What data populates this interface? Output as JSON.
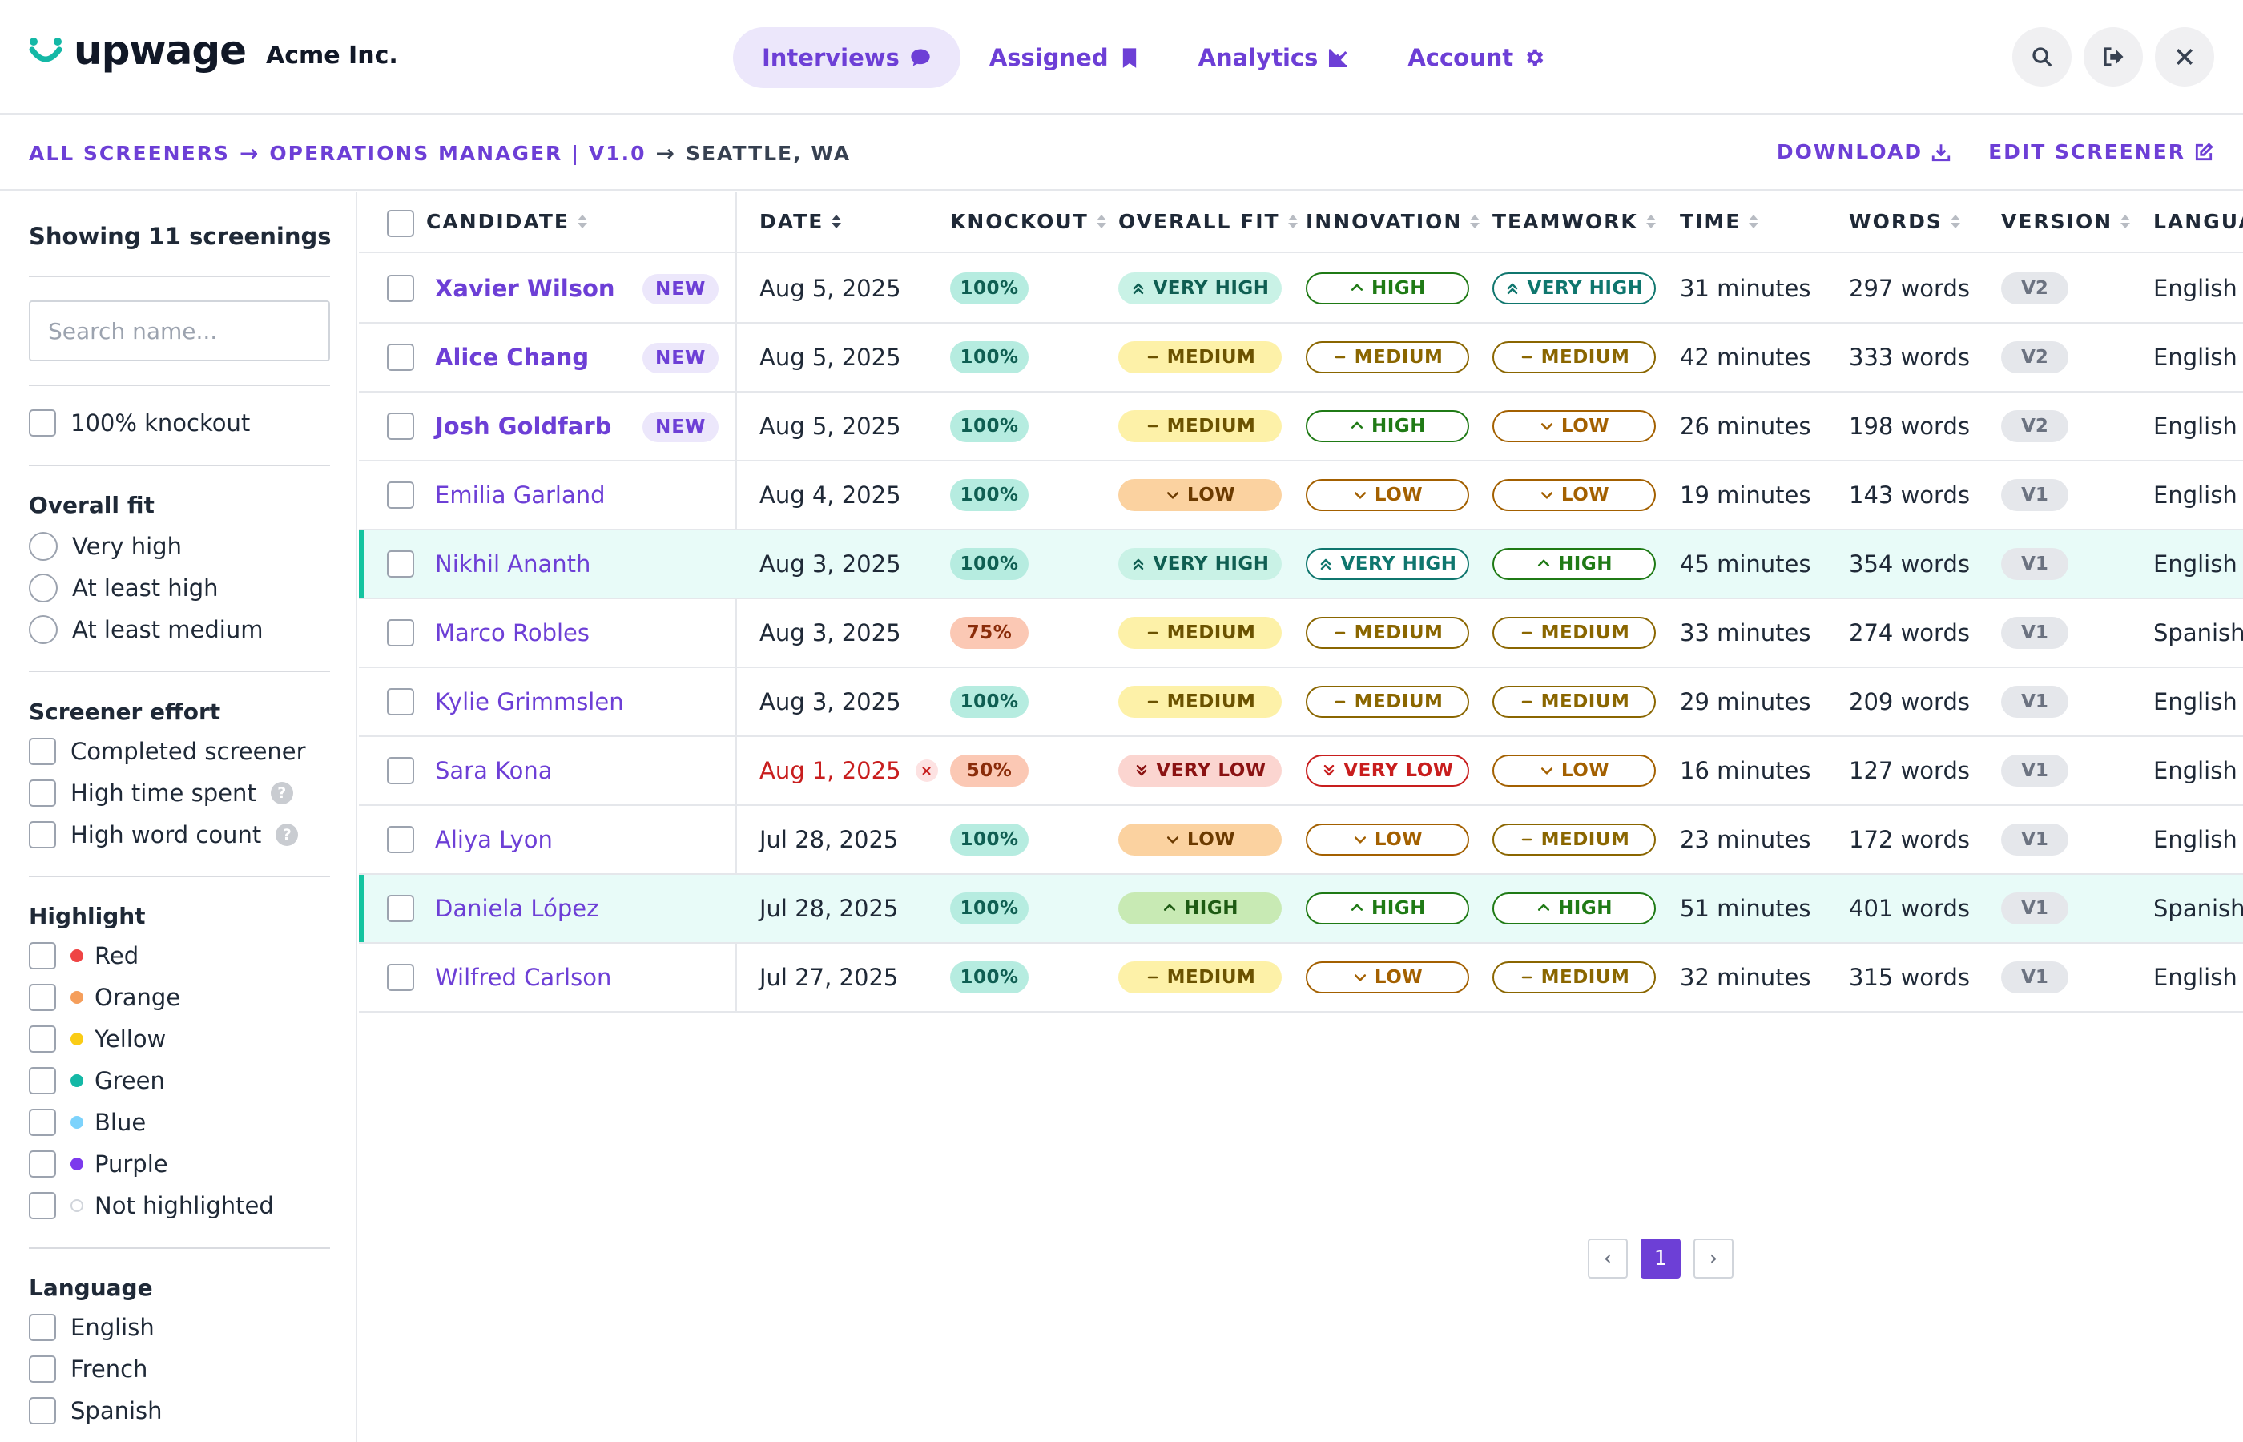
{
  "app": {
    "brand": "upwage",
    "company": "Acme Inc.",
    "accent": "#6d3fd6",
    "logo_color": "#14b8a6"
  },
  "nav": {
    "items": [
      {
        "label": "Interviews",
        "icon": "chat-bubble-icon",
        "active": true
      },
      {
        "label": "Assigned",
        "icon": "bookmark-icon",
        "active": false
      },
      {
        "label": "Analytics",
        "icon": "line-chart-icon",
        "active": false
      },
      {
        "label": "Account",
        "icon": "gear-icon",
        "active": false
      }
    ],
    "buttons": [
      "search-icon",
      "logout-icon",
      "close-icon"
    ]
  },
  "breadcrumb": {
    "root": "ALL SCREENERS",
    "screener": "OPERATIONS MANAGER | V1.0",
    "location": "SEATTLE, WA"
  },
  "actions": {
    "download": "DOWNLOAD",
    "edit": "EDIT SCREENER"
  },
  "sidebar": {
    "count_label": "Showing 11 screenings",
    "search_placeholder": "Search name...",
    "knockout_label": "100% knockout",
    "overall_fit": {
      "heading": "Overall fit",
      "options": [
        "Very high",
        "At least high",
        "At least medium"
      ]
    },
    "effort": {
      "heading": "Screener effort",
      "options": [
        "Completed screener",
        "High time spent",
        "High word count"
      ]
    },
    "highlight": {
      "heading": "Highlight",
      "options": [
        {
          "label": "Red",
          "color": "#ef4444"
        },
        {
          "label": "Orange",
          "color": "#f59e5b"
        },
        {
          "label": "Yellow",
          "color": "#facc15"
        },
        {
          "label": "Green",
          "color": "#14b8a6"
        },
        {
          "label": "Blue",
          "color": "#7dd3fc"
        },
        {
          "label": "Purple",
          "color": "#7c3aed"
        },
        {
          "label": "Not highlighted",
          "color": "#ffffff"
        }
      ]
    },
    "language": {
      "heading": "Language",
      "options": [
        "English",
        "French",
        "Spanish"
      ]
    }
  },
  "table": {
    "headers": [
      "CANDIDATE",
      "DATE",
      "KNOCKOUT",
      "OVERALL FIT",
      "INNOVATION",
      "TEAMWORK",
      "TIME",
      "WORDS",
      "VERSION",
      "LANGUA"
    ],
    "rows": [
      {
        "name": "Xavier Wilson",
        "is_new": true,
        "new_label": "NEW",
        "date": "Aug 5, 2025",
        "late": false,
        "knockout": "100%",
        "fit": "VERY HIGH",
        "innovation": "HIGH",
        "teamwork": "VERY HIGH",
        "time": "31 minutes",
        "words": "297 words",
        "version": "V2",
        "language": "English",
        "highlight": false
      },
      {
        "name": "Alice Chang",
        "is_new": true,
        "new_label": "NEW",
        "date": "Aug 5, 2025",
        "late": false,
        "knockout": "100%",
        "fit": "MEDIUM",
        "innovation": "MEDIUM",
        "teamwork": "MEDIUM",
        "time": "42 minutes",
        "words": "333 words",
        "version": "V2",
        "language": "English",
        "highlight": false
      },
      {
        "name": "Josh Goldfarb",
        "is_new": true,
        "new_label": "NEW",
        "date": "Aug 5, 2025",
        "late": false,
        "knockout": "100%",
        "fit": "MEDIUM",
        "innovation": "HIGH",
        "teamwork": "LOW",
        "time": "26 minutes",
        "words": "198 words",
        "version": "V2",
        "language": "English",
        "highlight": false
      },
      {
        "name": "Emilia Garland",
        "is_new": false,
        "date": "Aug 4, 2025",
        "late": false,
        "knockout": "100%",
        "fit": "LOW",
        "innovation": "LOW",
        "teamwork": "LOW",
        "time": "19 minutes",
        "words": "143 words",
        "version": "V1",
        "language": "English",
        "highlight": false
      },
      {
        "name": "Nikhil Ananth",
        "is_new": false,
        "date": "Aug 3, 2025",
        "late": false,
        "knockout": "100%",
        "fit": "VERY HIGH",
        "innovation": "VERY HIGH",
        "teamwork": "HIGH",
        "time": "45 minutes",
        "words": "354 words",
        "version": "V1",
        "language": "English",
        "highlight": true
      },
      {
        "name": "Marco Robles",
        "is_new": false,
        "date": "Aug 3, 2025",
        "late": false,
        "knockout": "75%",
        "fit": "MEDIUM",
        "innovation": "MEDIUM",
        "teamwork": "MEDIUM",
        "time": "33 minutes",
        "words": "274 words",
        "version": "V1",
        "language": "Spanish",
        "highlight": false
      },
      {
        "name": "Kylie Grimmslen",
        "is_new": false,
        "date": "Aug 3, 2025",
        "late": false,
        "knockout": "100%",
        "fit": "MEDIUM",
        "innovation": "MEDIUM",
        "teamwork": "MEDIUM",
        "time": "29 minutes",
        "words": "209 words",
        "version": "V1",
        "language": "English",
        "highlight": false
      },
      {
        "name": "Sara Kona",
        "is_new": false,
        "date": "Aug 1, 2025",
        "late": true,
        "knockout": "50%",
        "fit": "VERY LOW",
        "innovation": "VERY LOW",
        "teamwork": "LOW",
        "time": "16 minutes",
        "words": "127 words",
        "version": "V1",
        "language": "English",
        "highlight": false
      },
      {
        "name": "Aliya Lyon",
        "is_new": false,
        "date": "Jul 28, 2025",
        "late": false,
        "knockout": "100%",
        "fit": "LOW",
        "innovation": "LOW",
        "teamwork": "MEDIUM",
        "time": "23 minutes",
        "words": "172 words",
        "version": "V1",
        "language": "English",
        "highlight": false
      },
      {
        "name": "Daniela López",
        "is_new": false,
        "date": "Jul 28, 2025",
        "late": false,
        "knockout": "100%",
        "fit": "HIGH",
        "innovation": "HIGH",
        "teamwork": "HIGH",
        "time": "51 minutes",
        "words": "401 words",
        "version": "V1",
        "language": "Spanish",
        "highlight": true
      },
      {
        "name": "Wilfred Carlson",
        "is_new": false,
        "date": "Jul 27, 2025",
        "late": false,
        "knockout": "100%",
        "fit": "MEDIUM",
        "innovation": "LOW",
        "teamwork": "MEDIUM",
        "time": "32 minutes",
        "words": "315 words",
        "version": "V1",
        "language": "English",
        "highlight": false
      }
    ]
  },
  "pagination": {
    "prev": "‹",
    "current": "1",
    "next": "›"
  },
  "level_colors": {
    "VERY HIGH": "#0f766e",
    "HIGH": "#15803d",
    "MEDIUM": "#a16207",
    "LOW": "#b45309",
    "VERY LOW": "#c81e1e"
  }
}
